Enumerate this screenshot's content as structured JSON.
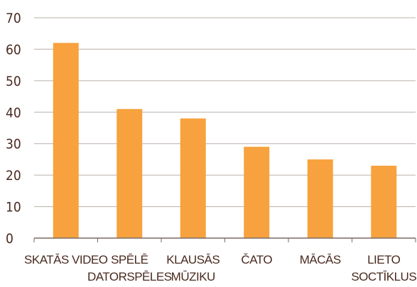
{
  "chart_data": {
    "type": "bar",
    "categories": [
      [
        "SKATĀS VIDEO"
      ],
      [
        "SPĒLĒ",
        "DATORSPĒLES"
      ],
      [
        "KLAUSĀS",
        "MŪZIKU"
      ],
      [
        "ČATO"
      ],
      [
        "MĀCĀS"
      ],
      [
        "LIETO",
        "SOCTĪKLUS"
      ]
    ],
    "values": [
      62,
      41,
      38,
      29,
      25,
      23
    ],
    "yticks": [
      "0",
      "10",
      "20",
      "30",
      "40",
      "50",
      "60",
      "70"
    ],
    "ylim": [
      0,
      70
    ],
    "grid": true,
    "legend": "none",
    "bar_color": "#f7a23e",
    "title": "",
    "xlabel": "",
    "ylabel": ""
  }
}
